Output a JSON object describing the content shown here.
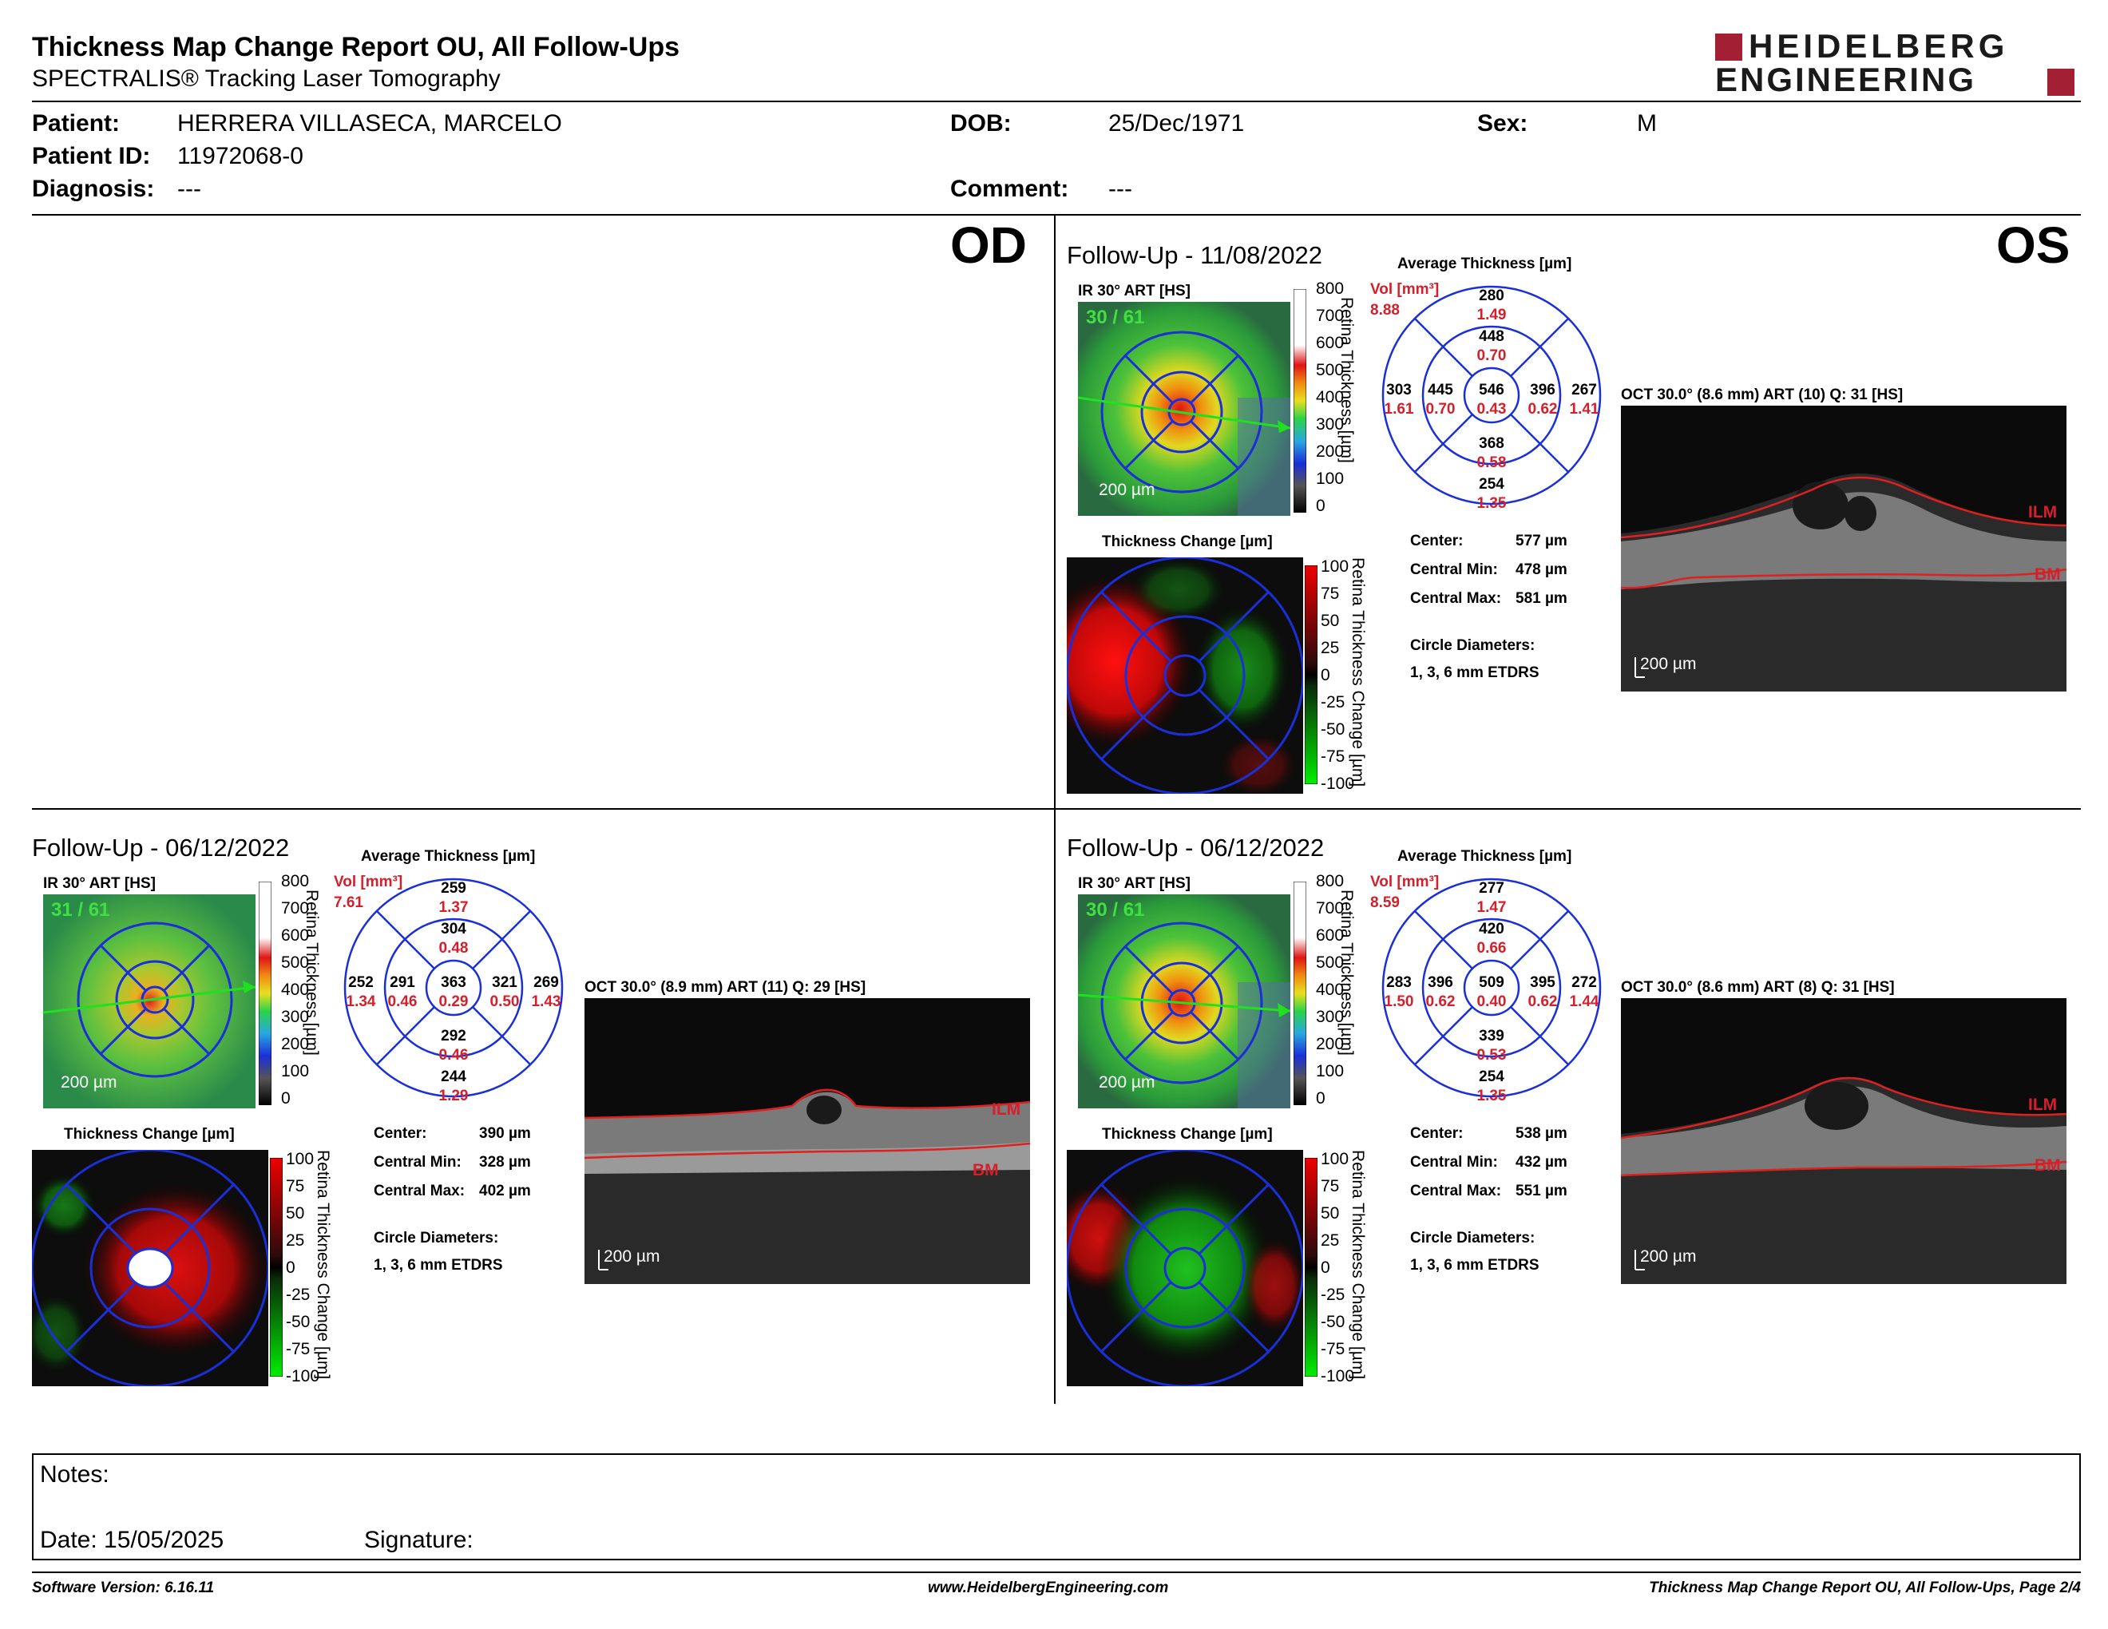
{
  "header": {
    "title": "Thickness Map Change Report OU, All Follow-Ups",
    "subtitle": "SPECTRALIS® Tracking Laser Tomography",
    "logo_line1": "HEIDELBERG",
    "logo_line2": "ENGINEERING",
    "brand_color": "#a31f34"
  },
  "patient": {
    "patient_label": "Patient:",
    "patient_value": "HERRERA VILLASECA, MARCELO",
    "id_label": "Patient ID:",
    "id_value": "11972068-0",
    "diagnosis_label": "Diagnosis:",
    "diagnosis_value": "---",
    "dob_label": "DOB:",
    "dob_value": "25/Dec/1971",
    "comment_label": "Comment:",
    "comment_value": "---",
    "sex_label": "Sex:",
    "sex_value": "M"
  },
  "eyes": {
    "od": "OD",
    "os": "OS"
  },
  "common": {
    "ir_label": "IR 30° ART [HS]",
    "thickness_change_label": "Thickness Change [µm]",
    "avg_thickness_label": "Average Thickness [µm]",
    "vol_label": "Vol [mm³]",
    "scalebar": "200 µm",
    "retina_thickness_axis": "Retina Thickness [µm]",
    "retina_change_axis": "Retina Thickness Change [µm]",
    "thickness_ticks": [
      "800",
      "700",
      "600",
      "500",
      "400",
      "300",
      "200",
      "100",
      "0"
    ],
    "change_ticks": [
      "100",
      "75",
      "50",
      "25",
      "0",
      "-25",
      "-50",
      "-75",
      "-100"
    ],
    "center_label": "Center:",
    "central_min_label": "Central Min:",
    "central_max_label": "Central Max:",
    "circle_diam_label": "Circle Diameters:",
    "circle_diam_value": "1, 3, 6 mm ETDRS",
    "ilm": "ILM",
    "bm": "BM"
  },
  "panels": {
    "os_1": {
      "title": "Follow-Up - 11/08/2022",
      "scan_count": "30 / 61",
      "vol": "8.88",
      "grid": {
        "sup_outer": [
          "280",
          "1.49"
        ],
        "sup_inner": [
          "448",
          "0.70"
        ],
        "temp_outer": [
          "303",
          "1.61"
        ],
        "temp_inner": [
          "445",
          "0.70"
        ],
        "center": [
          "546",
          "0.43"
        ],
        "nas_inner": [
          "396",
          "0.62"
        ],
        "nas_outer": [
          "267",
          "1.41"
        ],
        "inf_inner": [
          "368",
          "0.58"
        ],
        "inf_outer": [
          "254",
          "1.35"
        ]
      },
      "center": "577 µm",
      "central_min": "478 µm",
      "central_max": "581 µm",
      "oct_label": "OCT 30.0° (8.6 mm) ART (10) Q: 31 [HS]"
    },
    "od_2": {
      "title": "Follow-Up - 06/12/2022",
      "scan_count": "31 / 61",
      "vol": "7.61",
      "grid": {
        "sup_outer": [
          "259",
          "1.37"
        ],
        "sup_inner": [
          "304",
          "0.48"
        ],
        "temp_outer": [
          "252",
          "1.34"
        ],
        "temp_inner": [
          "291",
          "0.46"
        ],
        "center": [
          "363",
          "0.29"
        ],
        "nas_inner": [
          "321",
          "0.50"
        ],
        "nas_outer": [
          "269",
          "1.43"
        ],
        "inf_inner": [
          "292",
          "0.46"
        ],
        "inf_outer": [
          "244",
          "1.29"
        ]
      },
      "center": "390 µm",
      "central_min": "328 µm",
      "central_max": "402 µm",
      "oct_label": "OCT 30.0° (8.9 mm) ART (11) Q: 29 [HS]"
    },
    "os_2": {
      "title": "Follow-Up - 06/12/2022",
      "scan_count": "30 / 61",
      "vol": "8.59",
      "grid": {
        "sup_outer": [
          "277",
          "1.47"
        ],
        "sup_inner": [
          "420",
          "0.66"
        ],
        "temp_outer": [
          "283",
          "1.50"
        ],
        "temp_inner": [
          "396",
          "0.62"
        ],
        "center": [
          "509",
          "0.40"
        ],
        "nas_inner": [
          "395",
          "0.62"
        ],
        "nas_outer": [
          "272",
          "1.44"
        ],
        "inf_inner": [
          "339",
          "0.53"
        ],
        "inf_outer": [
          "254",
          "1.35"
        ]
      },
      "center": "538 µm",
      "central_min": "432 µm",
      "central_max": "551 µm",
      "oct_label": "OCT 30.0° (8.6 mm) ART (8) Q: 31 [HS]"
    }
  },
  "notes": {
    "notes_label": "Notes:",
    "date_label": "Date: 15/05/2025",
    "signature_label": "Signature:"
  },
  "footer": {
    "software": "Software Version: 6.16.11",
    "website": "www.HeidelbergEngineering.com",
    "page": "Thickness Map Change Report OU, All Follow-Ups, Page 2/4"
  }
}
